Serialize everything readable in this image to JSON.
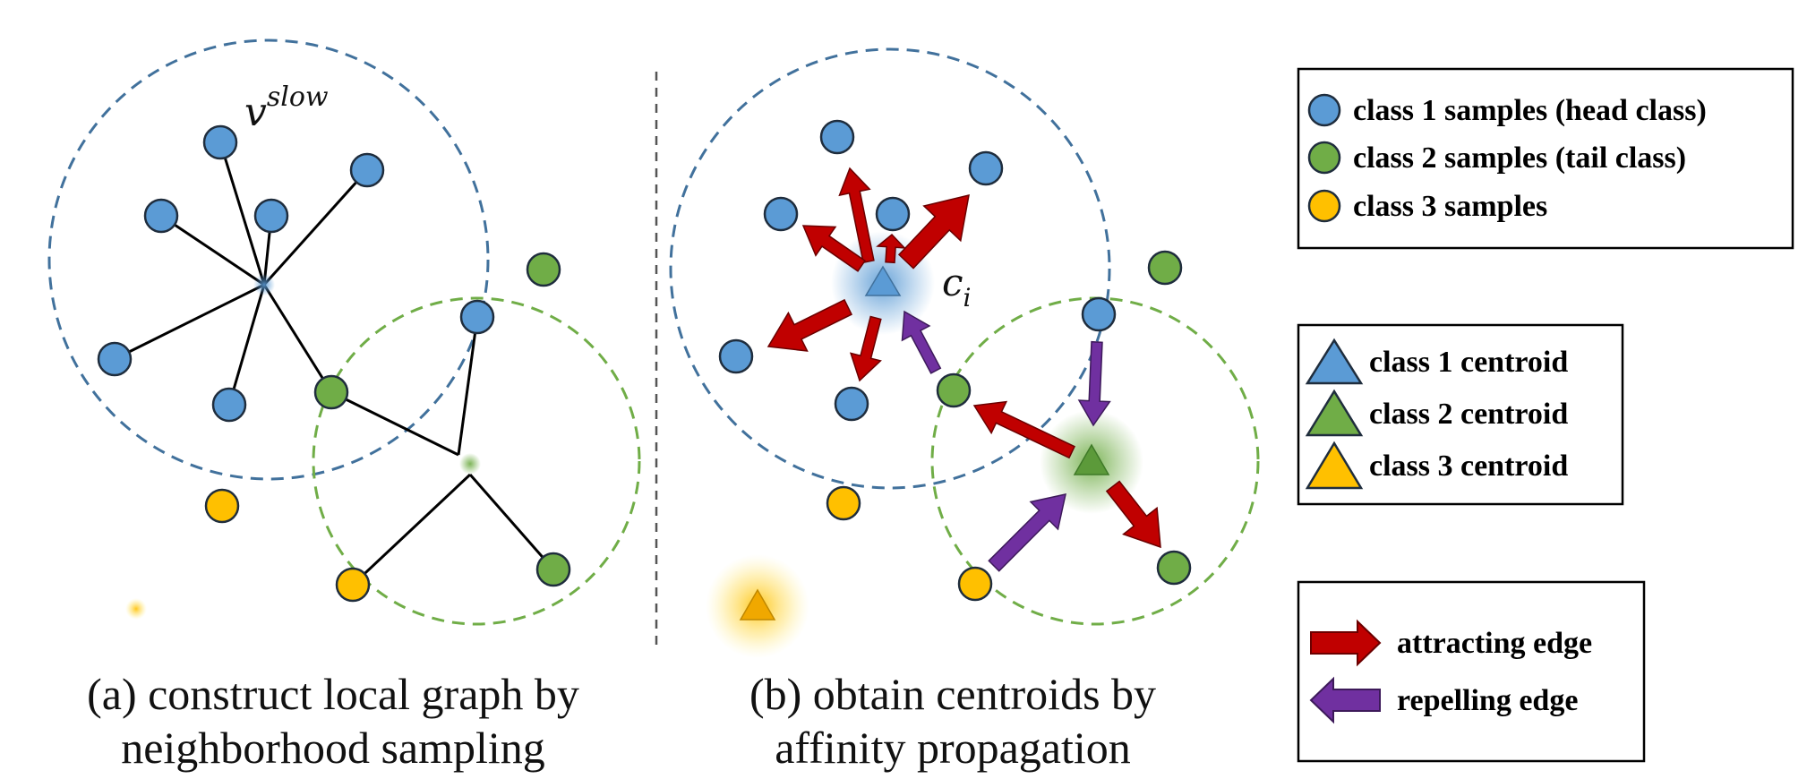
{
  "panel_a": {
    "caption_line1": "(a) construct local graph by",
    "caption_line2": "neighborhood sampling",
    "slow_label_base": "v",
    "slow_label_sup": "slow"
  },
  "panel_b": {
    "caption_line1": "(b) obtain centroids by",
    "caption_line2": "affinity propagation",
    "centroid_label_base": "c",
    "centroid_label_sub": "i"
  },
  "legend_samples": [
    {
      "label": "class 1 samples (head class)",
      "color": "#5b9bd5"
    },
    {
      "label": "class 2 samples (tail class)",
      "color": "#70ad47"
    },
    {
      "label": "class 3 samples",
      "color": "#ffc000"
    }
  ],
  "legend_centroids": [
    {
      "label": "class 1 centroid",
      "color": "#5b9bd5"
    },
    {
      "label": "class 2 centroid",
      "color": "#70ad47"
    },
    {
      "label": "class 3 centroid",
      "color": "#ffc000"
    }
  ],
  "legend_edges": [
    {
      "label": "attracting edge",
      "color": "#c00000"
    },
    {
      "label": "repelling edge",
      "color": "#7030a0"
    }
  ],
  "colors": {
    "class1": "#5b9bd5",
    "class2": "#70ad47",
    "class3": "#ffc000",
    "outline": "#1f2d3d",
    "blue_dash": "#41719c",
    "green_dash": "#70ad47",
    "attract": "#c00000",
    "repel": "#7030a0"
  }
}
